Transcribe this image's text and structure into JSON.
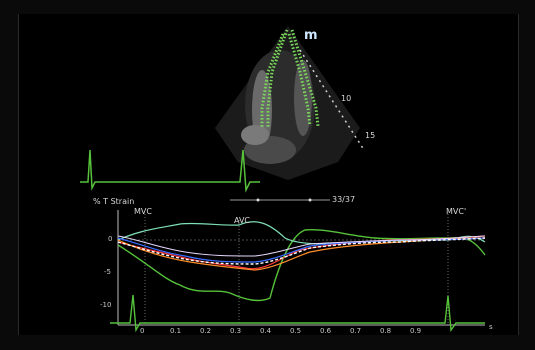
{
  "viewer": {
    "mode_badge": "m",
    "frame_counter": "33/37",
    "depth_marks": [
      "10",
      "15"
    ]
  },
  "strain_plot": {
    "ylabel": "% T Strain",
    "markers": [
      {
        "label": "MVC",
        "time": 0.0
      },
      {
        "label": "AVC",
        "time": 0.33
      },
      {
        "label": "MVC'",
        "time": 0.98
      }
    ],
    "y_ticks": [
      "0",
      "-5",
      "-10"
    ],
    "x_ticks": [
      "0",
      "0.1",
      "0.2",
      "0.3",
      "0.4",
      "0.5",
      "0.6",
      "0.7",
      "0.8",
      "0.9"
    ],
    "x_unit": "s"
  },
  "colors": {
    "background": "#000000",
    "tracking_points": "#7bdc5a",
    "ecg": "#56c23a",
    "average_curve": "#ffffff",
    "segment_curves": [
      "#ff3b3b",
      "#ff8c2a",
      "#3b6bff",
      "#e7d8ff",
      "#ff2f7a",
      "#56c23a"
    ]
  }
}
